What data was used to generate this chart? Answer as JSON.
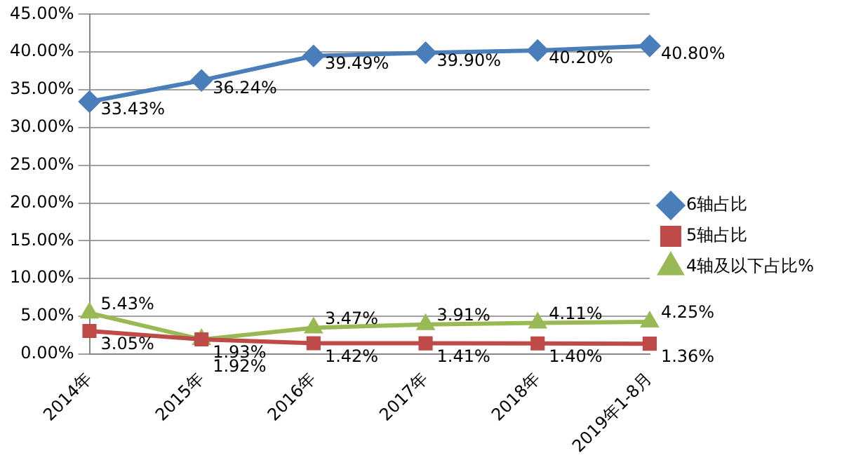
{
  "chart_data": {
    "type": "line",
    "categories": [
      "2014年",
      "2015年",
      "2016年",
      "2017年",
      "2018年",
      "2019年1-8月"
    ],
    "series": [
      {
        "name": "6轴占比",
        "color": "#4a7ebb",
        "marker": "diamond",
        "values": [
          33.43,
          36.24,
          39.49,
          39.9,
          40.2,
          40.8
        ],
        "value_labels": [
          "33.43%",
          "36.24%",
          "39.49%",
          "39.90%",
          "40.20%",
          "40.80%"
        ]
      },
      {
        "name": "5轴占比",
        "color": "#be4b48",
        "marker": "square",
        "values": [
          3.05,
          1.93,
          1.42,
          1.41,
          1.4,
          1.36
        ],
        "value_labels": [
          "3.05%",
          "1.93%",
          "1.42%",
          "1.41%",
          "1.40%",
          "1.36%"
        ]
      },
      {
        "name": "4轴及以下占比%",
        "color": "#98b954",
        "marker": "triangle",
        "values": [
          5.43,
          1.92,
          3.47,
          3.91,
          4.11,
          4.25
        ],
        "value_labels": [
          "5.43%",
          "1.92%",
          "3.47%",
          "3.91%",
          "4.11%",
          "4.25%"
        ]
      }
    ],
    "ylim": [
      0,
      45
    ],
    "yticks": [
      {
        "value": 0,
        "label": "0.00%"
      },
      {
        "value": 5,
        "label": "5.00%"
      },
      {
        "value": 10,
        "label": "10.00%"
      },
      {
        "value": 15,
        "label": "15.00%"
      },
      {
        "value": 20,
        "label": "20.00%"
      },
      {
        "value": 25,
        "label": "25.00%"
      },
      {
        "value": 30,
        "label": "30.00%"
      },
      {
        "value": 35,
        "label": "35.00%"
      },
      {
        "value": 40,
        "label": "40.00%"
      },
      {
        "value": 45,
        "label": "45.00%"
      }
    ],
    "grid": "y",
    "legend": "right",
    "line_style": "solid"
  }
}
